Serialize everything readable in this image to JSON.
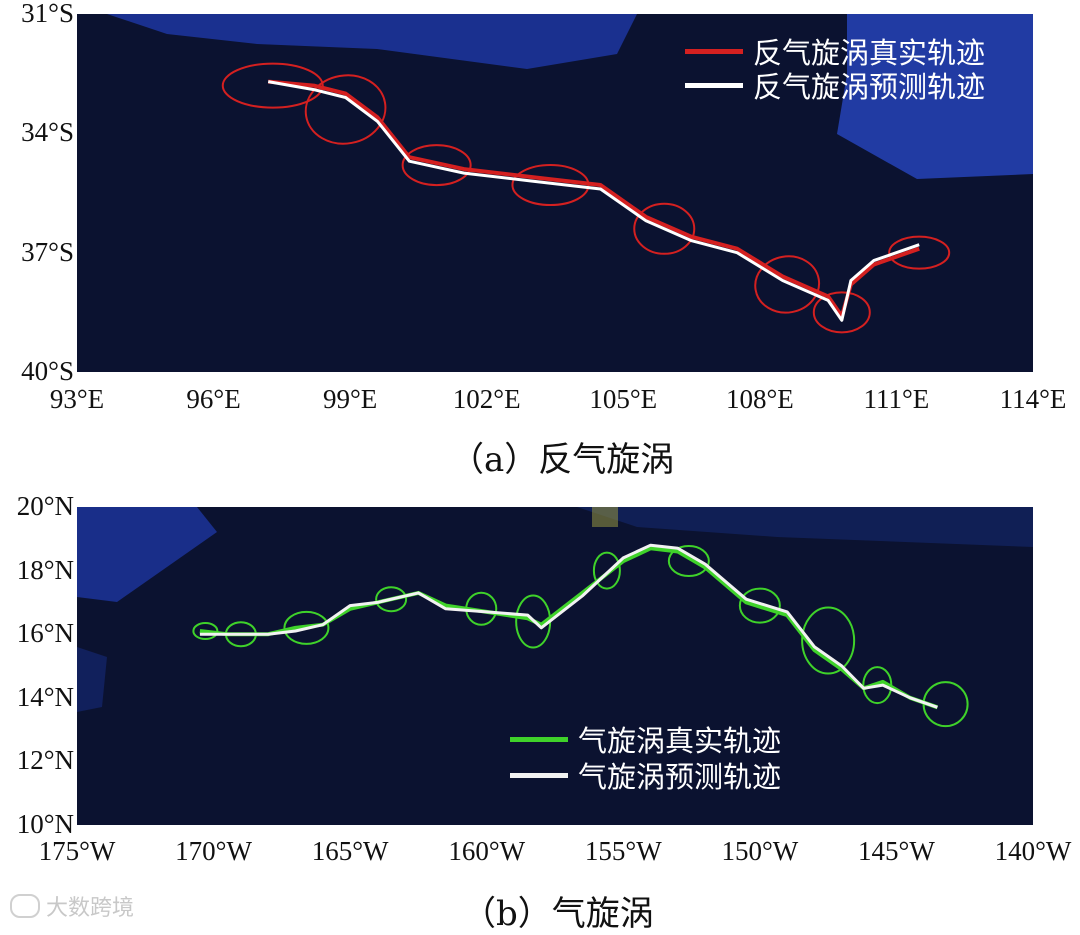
{
  "panel_a": {
    "caption": "（a）反气旋涡",
    "x_ticks": [
      "93°E",
      "96°E",
      "99°E",
      "102°E",
      "105°E",
      "108°E",
      "111°E",
      "114°E"
    ],
    "y_ticks": [
      "31°S",
      "34°S",
      "37°S",
      "40°S"
    ],
    "legend": {
      "true_label": "反气旋涡真实轨迹",
      "pred_label": "反气旋涡预测轨迹"
    },
    "colors": {
      "true": "#d42020",
      "pred": "#ffffff",
      "ocean": "#0b1230",
      "land": "#1e3aa8"
    }
  },
  "panel_b": {
    "caption": "（b）气旋涡",
    "x_ticks": [
      "175°W",
      "170°W",
      "165°W",
      "160°W",
      "155°W",
      "150°W",
      "145°W",
      "140°W"
    ],
    "y_ticks": [
      "20°N",
      "18°N",
      "16°N",
      "14°N",
      "12°N",
      "10°N"
    ],
    "legend": {
      "true_label": "气旋涡真实轨迹",
      "pred_label": "气旋涡预测轨迹"
    },
    "colors": {
      "true": "#3fd22a",
      "pred": "#f2f2f2",
      "ocean": "#0b1230",
      "land": "#1e3aa8"
    }
  },
  "watermark": "大数跨境",
  "chart_data": [
    {
      "type": "line",
      "title": "",
      "xlim": [
        93,
        114
      ],
      "ylim": [
        -40,
        -31
      ],
      "series": [
        {
          "name": "反气旋涡真实轨迹",
          "x": [
            97.2,
            98.2,
            98.9,
            99.6,
            100.3,
            101.5,
            103.0,
            104.5,
            105.5,
            106.5,
            107.5,
            108.5,
            109.5,
            109.8,
            110.0,
            110.5,
            111.5
          ],
          "y": [
            -32.7,
            -32.8,
            -33.0,
            -33.6,
            -34.6,
            -34.9,
            -35.1,
            -35.3,
            -36.1,
            -36.6,
            -36.9,
            -37.6,
            -38.1,
            -38.6,
            -37.8,
            -37.3,
            -36.9
          ]
        },
        {
          "name": "反气旋涡预测轨迹",
          "x": [
            97.2,
            98.2,
            98.9,
            99.6,
            100.3,
            101.5,
            103.0,
            104.5,
            105.5,
            106.5,
            107.5,
            108.5,
            109.5,
            109.8,
            110.0,
            110.5,
            111.5
          ],
          "y": [
            -32.7,
            -32.9,
            -33.1,
            -33.7,
            -34.7,
            -35.0,
            -35.2,
            -35.4,
            -36.2,
            -36.7,
            -37.0,
            -37.7,
            -38.2,
            -38.7,
            -37.7,
            -37.2,
            -36.8
          ]
        }
      ],
      "eddy_centers": {
        "x": [
          97.3,
          98.9,
          100.9,
          103.4,
          105.9,
          108.6,
          109.8,
          111.5
        ],
        "y": [
          -32.8,
          -33.4,
          -34.8,
          -35.3,
          -36.4,
          -37.8,
          -38.5,
          -37.0
        ]
      }
    },
    {
      "type": "line",
      "title": "",
      "xlim": [
        -175,
        -140
      ],
      "ylim": [
        10,
        20
      ],
      "series": [
        {
          "name": "气旋涡真实轨迹",
          "x": [
            -170.5,
            -169.5,
            -168.0,
            -167.0,
            -166.0,
            -165.0,
            -164.0,
            -162.5,
            -161.5,
            -160.0,
            -158.5,
            -158.0,
            -156.5,
            -155.0,
            -154.0,
            -153.0,
            -152.0,
            -150.5,
            -149.0,
            -148.0,
            -147.0,
            -146.2,
            -145.5,
            -144.5,
            -143.5
          ],
          "y": [
            16.1,
            16.0,
            16.0,
            16.2,
            16.3,
            16.8,
            17.0,
            17.3,
            16.9,
            16.7,
            16.5,
            16.3,
            17.3,
            18.3,
            18.7,
            18.6,
            18.1,
            17.0,
            16.6,
            15.5,
            14.9,
            14.3,
            14.5,
            14.0,
            13.7
          ]
        },
        {
          "name": "气旋涡预测轨迹",
          "x": [
            -170.5,
            -169.5,
            -168.0,
            -167.0,
            -166.0,
            -165.0,
            -164.0,
            -162.5,
            -161.5,
            -160.0,
            -158.5,
            -158.0,
            -156.5,
            -155.0,
            -154.0,
            -153.0,
            -152.0,
            -150.5,
            -149.0,
            -148.0,
            -147.0,
            -146.2,
            -145.5,
            -144.5,
            -143.5
          ],
          "y": [
            16.0,
            16.0,
            16.0,
            16.1,
            16.3,
            16.9,
            17.0,
            17.3,
            16.8,
            16.7,
            16.6,
            16.2,
            17.2,
            18.4,
            18.8,
            18.7,
            18.2,
            17.1,
            16.7,
            15.6,
            15.0,
            14.3,
            14.4,
            14.0,
            13.7
          ]
        }
      ],
      "eddy_centers": {
        "x": [
          -170.3,
          -169.0,
          -166.6,
          -163.5,
          -160.2,
          -158.3,
          -155.6,
          -152.6,
          -150.0,
          -147.5,
          -145.7,
          -143.2
        ],
        "y": [
          16.1,
          16.0,
          16.2,
          17.1,
          16.8,
          16.4,
          18.0,
          18.3,
          16.9,
          15.8,
          14.4,
          13.8
        ]
      }
    }
  ]
}
